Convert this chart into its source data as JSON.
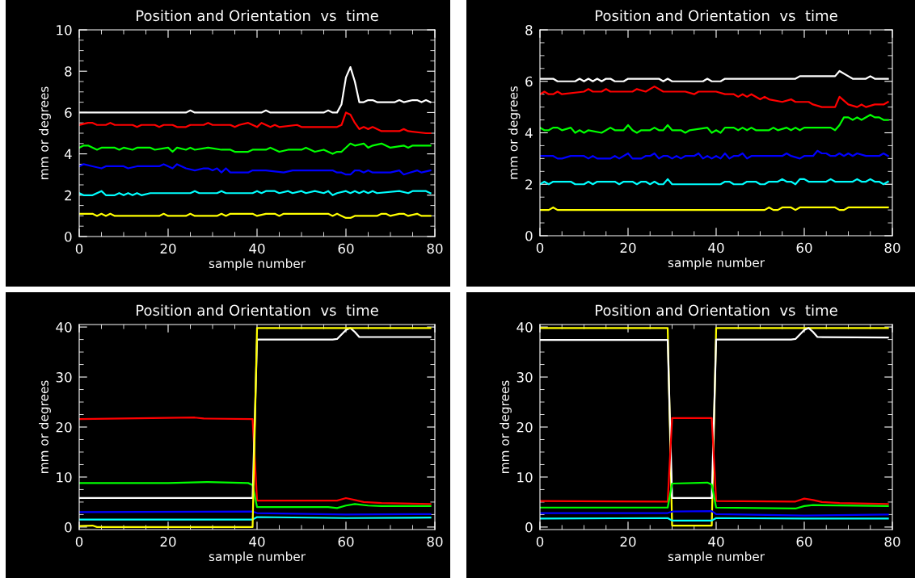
{
  "chart_data": [
    {
      "type": "line",
      "title": "Position and Orientation  vs  time",
      "xlabel": "sample number",
      "ylabel": "mm or degrees",
      "xlim": [
        0,
        80
      ],
      "ylim": [
        0,
        10
      ],
      "xticks": [
        0,
        20,
        40,
        60,
        80
      ],
      "yticks": [
        0,
        2,
        4,
        6,
        8,
        10
      ],
      "grid": false,
      "marker": "none",
      "line_style": "solid",
      "series": [
        {
          "color": "#ffffff",
          "x": [
            0,
            24,
            25,
            26,
            41,
            42,
            43,
            55,
            56,
            57,
            58,
            59,
            60,
            61,
            62,
            63,
            64,
            65,
            66,
            67,
            71,
            72,
            73,
            75,
            76,
            77,
            78,
            79
          ],
          "values": [
            6.0,
            6.0,
            6.1,
            6.0,
            6.0,
            6.1,
            6.0,
            6.0,
            6.1,
            6.0,
            6.0,
            6.4,
            7.7,
            8.2,
            7.5,
            6.5,
            6.5,
            6.6,
            6.6,
            6.5,
            6.5,
            6.6,
            6.5,
            6.6,
            6.6,
            6.5,
            6.6,
            6.5
          ]
        },
        {
          "color": "#ff0000",
          "x": [
            0,
            2,
            3,
            4,
            6,
            7,
            8,
            12,
            13,
            14,
            17,
            18,
            19,
            21,
            22,
            24,
            25,
            28,
            29,
            30,
            34,
            35,
            36,
            38,
            40,
            41,
            43,
            44,
            45,
            49,
            50,
            58,
            59,
            60,
            61,
            62,
            63,
            64,
            65,
            66,
            68,
            72,
            73,
            74,
            78,
            79
          ],
          "values": [
            5.4,
            5.5,
            5.5,
            5.4,
            5.4,
            5.5,
            5.4,
            5.4,
            5.3,
            5.4,
            5.4,
            5.3,
            5.4,
            5.4,
            5.3,
            5.3,
            5.4,
            5.4,
            5.5,
            5.4,
            5.4,
            5.3,
            5.4,
            5.5,
            5.3,
            5.5,
            5.3,
            5.4,
            5.3,
            5.4,
            5.3,
            5.3,
            5.4,
            6.0,
            5.9,
            5.5,
            5.2,
            5.3,
            5.2,
            5.3,
            5.1,
            5.1,
            5.2,
            5.1,
            5.0,
            5.0
          ]
        },
        {
          "color": "#00ff00",
          "x": [
            0,
            1,
            2,
            4,
            5,
            8,
            9,
            10,
            12,
            13,
            16,
            17,
            20,
            21,
            22,
            24,
            25,
            26,
            29,
            32,
            34,
            35,
            38,
            39,
            42,
            43,
            45,
            47,
            50,
            51,
            53,
            55,
            57,
            58,
            59,
            61,
            62,
            64,
            65,
            66,
            68,
            70,
            73,
            74,
            75,
            78,
            79
          ],
          "values": [
            4.3,
            4.4,
            4.4,
            4.2,
            4.3,
            4.3,
            4.2,
            4.3,
            4.2,
            4.3,
            4.3,
            4.2,
            4.3,
            4.1,
            4.3,
            4.2,
            4.3,
            4.2,
            4.3,
            4.2,
            4.2,
            4.1,
            4.1,
            4.2,
            4.2,
            4.3,
            4.1,
            4.2,
            4.2,
            4.3,
            4.1,
            4.2,
            4.0,
            4.1,
            4.1,
            4.5,
            4.4,
            4.5,
            4.3,
            4.4,
            4.5,
            4.3,
            4.4,
            4.3,
            4.4,
            4.4,
            4.4
          ]
        },
        {
          "color": "#0000ff",
          "x": [
            0,
            1,
            3,
            5,
            6,
            10,
            11,
            13,
            18,
            19,
            20,
            21,
            22,
            24,
            26,
            28,
            29,
            30,
            31,
            32,
            33,
            34,
            38,
            39,
            41,
            42,
            46,
            48,
            57,
            58,
            59,
            60,
            61,
            62,
            63,
            64,
            65,
            66,
            70,
            72,
            73,
            76,
            77,
            79
          ],
          "values": [
            3.4,
            3.5,
            3.4,
            3.3,
            3.4,
            3.4,
            3.3,
            3.4,
            3.4,
            3.5,
            3.4,
            3.3,
            3.5,
            3.3,
            3.2,
            3.3,
            3.3,
            3.2,
            3.3,
            3.1,
            3.3,
            3.1,
            3.1,
            3.2,
            3.2,
            3.2,
            3.1,
            3.2,
            3.2,
            3.1,
            3.1,
            3.0,
            3.0,
            3.2,
            3.2,
            3.1,
            3.2,
            3.1,
            3.1,
            3.2,
            3.0,
            3.2,
            3.1,
            3.2
          ]
        },
        {
          "color": "#00ffff",
          "x": [
            0,
            1,
            3,
            5,
            6,
            8,
            9,
            10,
            11,
            12,
            13,
            14,
            16,
            25,
            26,
            27,
            31,
            32,
            33,
            39,
            40,
            41,
            42,
            44,
            45,
            47,
            48,
            50,
            51,
            53,
            55,
            56,
            57,
            58,
            60,
            61,
            62,
            63,
            64,
            65,
            66,
            67,
            72,
            74,
            75,
            78,
            79
          ],
          "values": [
            2.1,
            2.0,
            2.0,
            2.2,
            2.0,
            2.0,
            2.1,
            2.0,
            2.1,
            2.0,
            2.1,
            2.0,
            2.1,
            2.1,
            2.2,
            2.1,
            2.1,
            2.2,
            2.1,
            2.1,
            2.2,
            2.1,
            2.2,
            2.2,
            2.1,
            2.2,
            2.1,
            2.2,
            2.1,
            2.2,
            2.1,
            2.2,
            2.0,
            2.1,
            2.2,
            2.1,
            2.2,
            2.1,
            2.2,
            2.1,
            2.2,
            2.1,
            2.2,
            2.1,
            2.2,
            2.2,
            2.1
          ]
        },
        {
          "color": "#ffff00",
          "x": [
            0,
            3,
            4,
            5,
            6,
            7,
            8,
            18,
            19,
            20,
            24,
            25,
            26,
            31,
            32,
            33,
            34,
            39,
            40,
            42,
            44,
            45,
            46,
            56,
            57,
            58,
            59,
            60,
            61,
            62,
            67,
            68,
            69,
            70,
            72,
            73,
            74,
            76,
            77,
            79
          ],
          "values": [
            1.1,
            1.1,
            1.0,
            1.1,
            1.0,
            1.1,
            1.0,
            1.0,
            1.1,
            1.0,
            1.0,
            1.1,
            1.0,
            1.0,
            1.1,
            1.0,
            1.1,
            1.1,
            1.0,
            1.1,
            1.1,
            1.0,
            1.1,
            1.1,
            1.0,
            1.1,
            1.0,
            0.9,
            0.9,
            1.0,
            1.0,
            1.1,
            1.1,
            1.0,
            1.1,
            1.1,
            1.0,
            1.1,
            1.0,
            1.0
          ]
        }
      ]
    },
    {
      "type": "line",
      "title": "Position and Orientation  vs  time",
      "xlabel": "sample number",
      "ylabel": "mm or degrees",
      "xlim": [
        0,
        80
      ],
      "ylim": [
        0,
        8
      ],
      "xticks": [
        0,
        20,
        40,
        60,
        80
      ],
      "yticks": [
        0,
        2,
        4,
        6,
        8
      ],
      "grid": false,
      "marker": "none",
      "line_style": "solid",
      "series": [
        {
          "color": "#ffffff",
          "x": [
            0,
            3,
            4,
            8,
            9,
            10,
            11,
            12,
            13,
            14,
            15,
            16,
            17,
            19,
            20,
            27,
            28,
            29,
            30,
            37,
            38,
            39,
            41,
            42,
            58,
            59,
            67,
            68,
            70,
            71,
            74,
            75,
            76,
            79
          ],
          "values": [
            6.1,
            6.1,
            6.0,
            6.0,
            6.1,
            6.0,
            6.1,
            6.0,
            6.1,
            6.0,
            6.1,
            6.1,
            6.0,
            6.0,
            6.1,
            6.1,
            6.0,
            6.1,
            6.0,
            6.0,
            6.1,
            6.0,
            6.0,
            6.1,
            6.1,
            6.2,
            6.2,
            6.4,
            6.2,
            6.1,
            6.1,
            6.2,
            6.1,
            6.1
          ]
        },
        {
          "color": "#ff0000",
          "x": [
            0,
            1,
            2,
            3,
            4,
            5,
            10,
            11,
            12,
            14,
            15,
            16,
            21,
            22,
            24,
            26,
            28,
            33,
            35,
            36,
            40,
            42,
            44,
            45,
            46,
            47,
            48,
            50,
            51,
            52,
            55,
            57,
            58,
            61,
            62,
            64,
            67,
            68,
            70,
            72,
            73,
            74,
            76,
            78,
            79
          ],
          "values": [
            5.5,
            5.6,
            5.5,
            5.5,
            5.6,
            5.5,
            5.6,
            5.7,
            5.6,
            5.6,
            5.7,
            5.6,
            5.6,
            5.7,
            5.6,
            5.8,
            5.6,
            5.6,
            5.5,
            5.6,
            5.6,
            5.5,
            5.5,
            5.4,
            5.5,
            5.4,
            5.5,
            5.3,
            5.4,
            5.3,
            5.2,
            5.3,
            5.2,
            5.2,
            5.1,
            5.0,
            5.0,
            5.4,
            5.1,
            5.0,
            5.1,
            5.0,
            5.1,
            5.1,
            5.2
          ]
        },
        {
          "color": "#00ff00",
          "x": [
            0,
            1,
            2,
            3,
            4,
            5,
            7,
            8,
            9,
            10,
            11,
            14,
            16,
            17,
            19,
            20,
            21,
            22,
            23,
            25,
            26,
            27,
            28,
            29,
            30,
            32,
            33,
            34,
            38,
            39,
            40,
            41,
            42,
            44,
            45,
            46,
            47,
            48,
            49,
            52,
            53,
            54,
            56,
            57,
            58,
            59,
            60,
            66,
            67,
            68,
            69,
            70,
            71,
            72,
            73,
            75,
            76,
            77,
            78,
            79
          ],
          "values": [
            4.2,
            4.1,
            4.1,
            4.2,
            4.2,
            4.1,
            4.2,
            4.0,
            4.1,
            4.0,
            4.1,
            4.0,
            4.2,
            4.1,
            4.1,
            4.3,
            4.1,
            4.0,
            4.1,
            4.1,
            4.2,
            4.1,
            4.1,
            4.3,
            4.1,
            4.1,
            4.0,
            4.1,
            4.2,
            4.0,
            4.1,
            4.0,
            4.2,
            4.2,
            4.1,
            4.2,
            4.1,
            4.2,
            4.1,
            4.1,
            4.2,
            4.1,
            4.2,
            4.1,
            4.2,
            4.1,
            4.2,
            4.2,
            4.1,
            4.3,
            4.6,
            4.6,
            4.5,
            4.6,
            4.5,
            4.7,
            4.6,
            4.6,
            4.5,
            4.5
          ]
        },
        {
          "color": "#0000ff",
          "x": [
            0,
            3,
            4,
            5,
            7,
            10,
            11,
            12,
            13,
            16,
            17,
            18,
            20,
            21,
            23,
            24,
            25,
            26,
            27,
            28,
            29,
            30,
            31,
            32,
            33,
            35,
            36,
            37,
            38,
            39,
            40,
            41,
            42,
            43,
            44,
            45,
            46,
            47,
            48,
            55,
            56,
            57,
            59,
            60,
            62,
            63,
            64,
            65,
            66,
            67,
            68,
            69,
            70,
            71,
            72,
            74,
            77,
            78,
            79
          ],
          "values": [
            3.1,
            3.1,
            3.0,
            3.0,
            3.1,
            3.1,
            3.0,
            3.1,
            3.0,
            3.0,
            3.1,
            3.0,
            3.2,
            3.0,
            3.0,
            3.1,
            3.1,
            3.2,
            3.0,
            3.1,
            3.1,
            3.0,
            3.1,
            3.0,
            3.1,
            3.1,
            3.2,
            3.0,
            3.1,
            3.0,
            3.1,
            3.0,
            3.2,
            3.0,
            3.1,
            3.1,
            3.2,
            3.0,
            3.1,
            3.1,
            3.2,
            3.1,
            3.0,
            3.1,
            3.1,
            3.3,
            3.2,
            3.2,
            3.1,
            3.1,
            3.2,
            3.1,
            3.2,
            3.1,
            3.2,
            3.1,
            3.1,
            3.2,
            3.1
          ]
        },
        {
          "color": "#00ffff",
          "x": [
            0,
            1,
            2,
            3,
            7,
            8,
            10,
            11,
            12,
            13,
            17,
            18,
            19,
            21,
            22,
            23,
            24,
            25,
            26,
            27,
            28,
            29,
            30,
            41,
            42,
            43,
            44,
            46,
            47,
            49,
            50,
            51,
            52,
            54,
            55,
            56,
            57,
            58,
            59,
            60,
            61,
            65,
            66,
            67,
            71,
            72,
            73,
            74,
            75,
            76,
            77,
            78,
            79
          ],
          "values": [
            2.0,
            2.1,
            2.0,
            2.1,
            2.1,
            2.0,
            2.0,
            2.1,
            2.0,
            2.1,
            2.1,
            2.0,
            2.1,
            2.1,
            2.0,
            2.1,
            2.1,
            2.0,
            2.1,
            2.0,
            2.0,
            2.2,
            2.0,
            2.0,
            2.1,
            2.1,
            2.0,
            2.0,
            2.1,
            2.1,
            2.0,
            2.0,
            2.1,
            2.1,
            2.2,
            2.1,
            2.1,
            2.0,
            2.2,
            2.2,
            2.1,
            2.1,
            2.2,
            2.1,
            2.1,
            2.2,
            2.1,
            2.1,
            2.2,
            2.1,
            2.1,
            2.0,
            2.1
          ]
        },
        {
          "color": "#ffff00",
          "x": [
            0,
            2,
            3,
            4,
            51,
            52,
            53,
            54,
            55,
            57,
            58,
            59,
            64,
            67,
            68,
            69,
            70,
            79
          ],
          "values": [
            1.0,
            1.0,
            1.1,
            1.0,
            1.0,
            1.1,
            1.0,
            1.0,
            1.1,
            1.1,
            1.0,
            1.1,
            1.1,
            1.1,
            1.0,
            1.0,
            1.1,
            1.1
          ]
        }
      ]
    },
    {
      "type": "line",
      "title": "Position and Orientation  vs  time",
      "xlabel": "sample number",
      "ylabel": "mm or degrees",
      "xlim": [
        0,
        80
      ],
      "ylim": [
        -0.5,
        40.5
      ],
      "xticks": [
        0,
        20,
        40,
        60,
        80
      ],
      "yticks": [
        0,
        10,
        20,
        30,
        40
      ],
      "grid": false,
      "marker": "none",
      "line_style": "solid",
      "series": [
        {
          "color": "#ff0000",
          "x": [
            0,
            10,
            26,
            28,
            39,
            40,
            58,
            60,
            62,
            64,
            68,
            79
          ],
          "values": [
            21.6,
            21.7,
            21.9,
            21.7,
            21.6,
            5.3,
            5.3,
            5.8,
            5.4,
            5.0,
            4.8,
            4.6
          ]
        },
        {
          "color": "#00ff00",
          "x": [
            0,
            20,
            29,
            38,
            39,
            40,
            56,
            58,
            60,
            62,
            65,
            68,
            79
          ],
          "values": [
            8.8,
            8.8,
            9.0,
            8.8,
            8.4,
            4.0,
            4.0,
            3.8,
            4.3,
            4.6,
            4.3,
            4.2,
            4.2
          ]
        },
        {
          "color": "#ffffff",
          "x": [
            0,
            39,
            40,
            57,
            58,
            60,
            61,
            62,
            63,
            68,
            79
          ],
          "values": [
            5.8,
            5.8,
            37.5,
            37.5,
            37.6,
            39.4,
            39.8,
            39.0,
            38.0,
            38.0,
            38.0
          ]
        },
        {
          "color": "#0000ff",
          "x": [
            0,
            39,
            40,
            60,
            79
          ],
          "values": [
            3.0,
            3.1,
            2.8,
            2.5,
            2.6
          ]
        },
        {
          "color": "#00ffff",
          "x": [
            0,
            39,
            40,
            60,
            79
          ],
          "values": [
            1.5,
            1.5,
            2.0,
            1.8,
            1.9
          ]
        },
        {
          "color": "#ffff00",
          "x": [
            0,
            3,
            4,
            39,
            40,
            60,
            79
          ],
          "values": [
            0.2,
            0.3,
            0.0,
            0.0,
            39.8,
            39.8,
            39.8
          ]
        }
      ]
    },
    {
      "type": "line",
      "title": "Position and Orientation  vs  time",
      "xlabel": "sample number",
      "ylabel": "mm or degrees",
      "xlim": [
        0,
        80
      ],
      "ylim": [
        -0.5,
        40.5
      ],
      "xticks": [
        0,
        20,
        40,
        60,
        80
      ],
      "yticks": [
        0,
        10,
        20,
        30,
        40
      ],
      "grid": false,
      "marker": "none",
      "line_style": "solid",
      "series": [
        {
          "color": "#ffff00",
          "x": [
            0,
            29,
            30,
            39,
            40,
            79
          ],
          "values": [
            39.8,
            39.8,
            0.3,
            0.3,
            39.8,
            39.8
          ]
        },
        {
          "color": "#ffffff",
          "x": [
            0,
            29,
            30,
            39,
            40,
            57,
            58,
            60,
            61,
            62,
            63,
            79
          ],
          "values": [
            37.4,
            37.4,
            5.8,
            5.8,
            37.5,
            37.5,
            37.6,
            39.4,
            39.8,
            39.0,
            38.0,
            37.9
          ]
        },
        {
          "color": "#ff0000",
          "x": [
            0,
            29,
            30,
            39,
            40,
            58,
            60,
            62,
            64,
            68,
            79
          ],
          "values": [
            5.2,
            5.1,
            21.8,
            21.8,
            5.2,
            5.1,
            5.7,
            5.4,
            5.0,
            4.8,
            4.6
          ]
        },
        {
          "color": "#00ff00",
          "x": [
            0,
            29,
            30,
            38,
            39,
            40,
            58,
            60,
            62,
            79
          ],
          "values": [
            3.9,
            3.9,
            8.7,
            8.9,
            8.5,
            3.9,
            3.7,
            4.2,
            4.4,
            4.2
          ]
        },
        {
          "color": "#0000ff",
          "x": [
            0,
            29,
            30,
            39,
            40,
            60,
            79
          ],
          "values": [
            2.8,
            2.8,
            3.1,
            3.2,
            2.6,
            2.3,
            2.5
          ]
        },
        {
          "color": "#00ffff",
          "x": [
            0,
            29,
            30,
            39,
            40,
            60,
            79
          ],
          "values": [
            1.7,
            1.8,
            1.3,
            1.3,
            1.8,
            1.7,
            1.7
          ]
        }
      ]
    }
  ]
}
